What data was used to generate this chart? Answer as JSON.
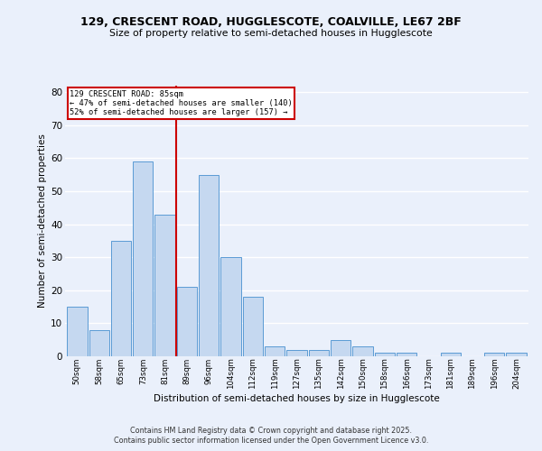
{
  "title1": "129, CRESCENT ROAD, HUGGLESCOTE, COALVILLE, LE67 2BF",
  "title2": "Size of property relative to semi-detached houses in Hugglescote",
  "xlabel": "Distribution of semi-detached houses by size in Hugglescote",
  "ylabel": "Number of semi-detached properties",
  "categories": [
    "50sqm",
    "58sqm",
    "65sqm",
    "73sqm",
    "81sqm",
    "89sqm",
    "96sqm",
    "104sqm",
    "112sqm",
    "119sqm",
    "127sqm",
    "135sqm",
    "142sqm",
    "150sqm",
    "158sqm",
    "166sqm",
    "173sqm",
    "181sqm",
    "189sqm",
    "196sqm",
    "204sqm"
  ],
  "values": [
    15,
    8,
    35,
    59,
    43,
    21,
    55,
    30,
    18,
    3,
    2,
    2,
    5,
    3,
    1,
    1,
    0,
    1,
    0,
    1,
    1
  ],
  "bar_color": "#c5d8f0",
  "bar_edge_color": "#5b9bd5",
  "property_bin_index": 4,
  "annotation_title": "129 CRESCENT ROAD: 85sqm",
  "annotation_line1": "← 47% of semi-detached houses are smaller (140)",
  "annotation_line2": "52% of semi-detached houses are larger (157) →",
  "vline_color": "#cc0000",
  "annotation_box_edge": "#cc0000",
  "ylim": [
    0,
    82
  ],
  "yticks": [
    0,
    10,
    20,
    30,
    40,
    50,
    60,
    70,
    80
  ],
  "footer1": "Contains HM Land Registry data © Crown copyright and database right 2025.",
  "footer2": "Contains public sector information licensed under the Open Government Licence v3.0.",
  "bg_color": "#eaf0fb",
  "plot_bg_color": "#eaf0fb",
  "grid_color": "#ffffff"
}
